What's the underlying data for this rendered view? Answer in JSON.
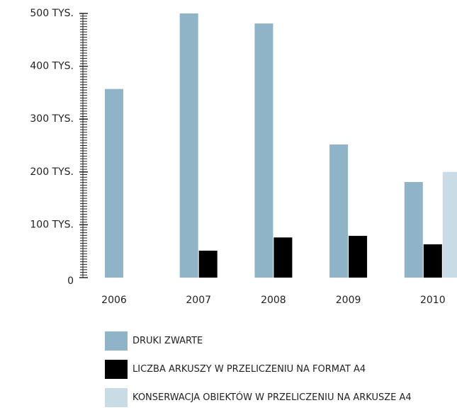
{
  "chart_data": {
    "type": "bar",
    "categories": [
      "2006",
      "2007",
      "2008",
      "2009",
      "2010"
    ],
    "series": [
      {
        "name": "DRUKI ZWARTE",
        "color": "#8fb3c7",
        "values": [
          357,
          500,
          481,
          252,
          181
        ]
      },
      {
        "name": "LICZBA ARKUSZY W PRZELICZENIU NA FORMAT A4",
        "color": "#000000",
        "values": [
          null,
          51,
          76,
          79,
          63
        ]
      },
      {
        "name": "KONSERWACJA OBIEKTÓW W PRZELICZENIU NA ARKUSZE A4",
        "color": "#c9dbe4",
        "values": [
          null,
          null,
          null,
          null,
          200
        ]
      }
    ],
    "ylim": [
      0,
      500
    ],
    "yticks": [
      0,
      {
        "value": 100,
        "label": "100 TYS."
      },
      {
        "value": 200,
        "label": "200 TYS."
      },
      {
        "value": 300,
        "label": "300 TYS."
      },
      {
        "value": 400,
        "label": "400 TYS."
      },
      {
        "value": 500,
        "label": "500 TYS."
      }
    ]
  }
}
